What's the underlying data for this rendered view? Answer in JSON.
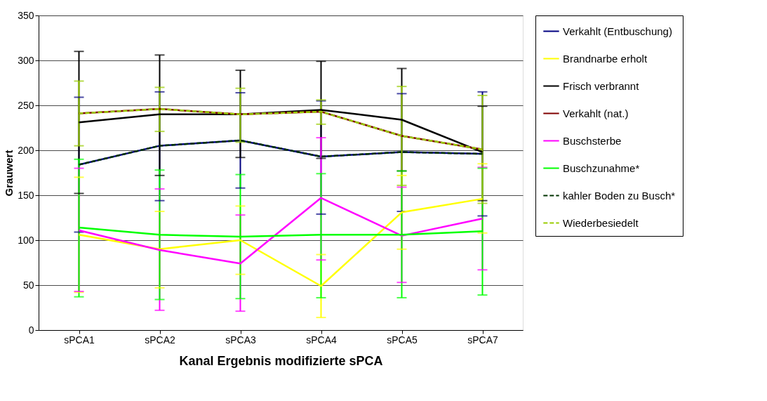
{
  "chart_data": {
    "type": "line",
    "xlabel": "Kanal Ergebnis modifizierte sPCA",
    "ylabel": "Grauwert",
    "categories": [
      "sPCA1",
      "sPCA2",
      "sPCA3",
      "sPCA4",
      "sPCA5",
      "sPCA7"
    ],
    "ylim": [
      0,
      350
    ],
    "yticks": [
      0,
      50,
      100,
      150,
      200,
      250,
      300,
      350
    ],
    "grid": "y",
    "legend": "right",
    "marker": "none",
    "series": [
      {
        "name": "Verkahlt (Entbuschung)",
        "color": "#000080",
        "line_style": "solid",
        "values": [
          184,
          205,
          211,
          193,
          198,
          196
        ],
        "errors": [
          [
            109,
            259
          ],
          [
            144,
            265
          ],
          [
            158,
            264
          ],
          [
            129,
            255
          ],
          [
            132,
            263
          ],
          [
            127,
            265
          ]
        ]
      },
      {
        "name": "Brandnarbe erholt",
        "color": "#ffff00",
        "line_style": "solid",
        "values": [
          106,
          90,
          100,
          49,
          131,
          146
        ],
        "errors": [
          [
            42,
            170
          ],
          [
            47,
            132
          ],
          [
            62,
            138
          ],
          [
            14,
            84
          ],
          [
            90,
            172
          ],
          [
            108,
            185
          ]
        ]
      },
      {
        "name": "Frisch verbrannt",
        "color": "#000000",
        "line_style": "solid",
        "values": [
          231,
          240,
          240,
          245,
          234,
          198
        ],
        "errors": [
          [
            152,
            310
          ],
          [
            172,
            306
          ],
          [
            192,
            289
          ],
          [
            191,
            299
          ],
          [
            177,
            291
          ],
          [
            144,
            249
          ]
        ]
      },
      {
        "name": "Verkahlt (nat.)",
        "color": "#800000",
        "line_style": "solid",
        "values": [
          241,
          246,
          240,
          243,
          216,
          201
        ]
      },
      {
        "name": "Buschsterbe",
        "color": "#ff00ff",
        "line_style": "solid",
        "values": [
          111,
          89,
          74,
          147,
          105,
          124
        ],
        "errors": [
          [
            43,
            180
          ],
          [
            22,
            157
          ],
          [
            21,
            128
          ],
          [
            78,
            214
          ],
          [
            53,
            159
          ],
          [
            67,
            181
          ]
        ]
      },
      {
        "name": "Buschzunahme*",
        "color": "#00ff00",
        "line_style": "solid",
        "values": [
          114,
          106,
          104,
          106,
          106,
          110
        ],
        "errors": [
          [
            37,
            190
          ],
          [
            34,
            178
          ],
          [
            35,
            173
          ],
          [
            36,
            174
          ],
          [
            36,
            177
          ],
          [
            39,
            180
          ]
        ]
      },
      {
        "name": "kahler Boden zu Busch*",
        "color": "#003300",
        "line_style": "dashed",
        "values": [
          184,
          205,
          211,
          193,
          198,
          196
        ]
      },
      {
        "name": "Wiederbesiedelt",
        "color": "#99cc00",
        "line_style": "dashed",
        "values": [
          241,
          246,
          240,
          243,
          216,
          201
        ],
        "errors": [
          [
            205,
            277
          ],
          [
            221,
            270
          ],
          [
            209,
            269
          ],
          [
            229,
            256
          ],
          [
            161,
            271
          ],
          [
            141,
            261
          ]
        ]
      }
    ]
  }
}
